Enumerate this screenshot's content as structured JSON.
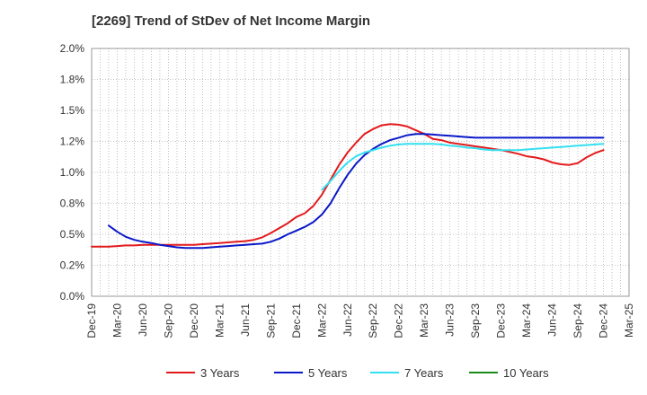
{
  "chart_data": {
    "type": "line",
    "title": "[2269]  Trend of StDev of Net Income Margin",
    "xlabel": "",
    "ylabel": "",
    "ylim": [
      0,
      2.0
    ],
    "y_ticks": [
      "0.0%",
      "0.2%",
      "0.5%",
      "0.8%",
      "1.0%",
      "1.2%",
      "1.5%",
      "1.8%",
      "2.0%"
    ],
    "x_ticks": [
      "Dec-19",
      "Mar-20",
      "Jun-20",
      "Sep-20",
      "Dec-20",
      "Mar-21",
      "Jun-21",
      "Sep-21",
      "Dec-21",
      "Mar-22",
      "Jun-22",
      "Sep-22",
      "Dec-22",
      "Mar-23",
      "Jun-23",
      "Sep-23",
      "Dec-23",
      "Mar-24",
      "Jun-24",
      "Sep-24",
      "Dec-24",
      "Mar-25"
    ],
    "grid": true,
    "legend_position": "bottom",
    "series": [
      {
        "name": "3 Years",
        "color": "#e31a1c",
        "x": [
          "Dec-19",
          "Jan-20",
          "Feb-20",
          "Mar-20",
          "Apr-20",
          "May-20",
          "Jun-20",
          "Jul-20",
          "Aug-20",
          "Sep-20",
          "Oct-20",
          "Nov-20",
          "Dec-20",
          "Jan-21",
          "Feb-21",
          "Mar-21",
          "Apr-21",
          "May-21",
          "Jun-21",
          "Jul-21",
          "Aug-21",
          "Sep-21",
          "Oct-21",
          "Nov-21",
          "Dec-21",
          "Jan-22",
          "Feb-22",
          "Mar-22",
          "Apr-22",
          "May-22",
          "Jun-22",
          "Jul-22",
          "Aug-22",
          "Sep-22",
          "Oct-22",
          "Nov-22",
          "Dec-22",
          "Jan-23",
          "Feb-23",
          "Mar-23",
          "Apr-23",
          "May-23",
          "Jun-23",
          "Jul-23",
          "Aug-23",
          "Sep-23",
          "Oct-23",
          "Nov-23",
          "Dec-23",
          "Jan-24",
          "Feb-24",
          "Mar-24",
          "Apr-24",
          "May-24",
          "Jun-24",
          "Jul-24",
          "Aug-24",
          "Sep-24",
          "Oct-24",
          "Nov-24",
          "Dec-24"
        ],
        "values": [
          0.4,
          0.4,
          0.4,
          0.405,
          0.41,
          0.41,
          0.415,
          0.415,
          0.415,
          0.415,
          0.415,
          0.415,
          0.415,
          0.42,
          0.425,
          0.43,
          0.435,
          0.44,
          0.445,
          0.455,
          0.475,
          0.51,
          0.55,
          0.59,
          0.64,
          0.67,
          0.73,
          0.82,
          0.94,
          1.06,
          1.16,
          1.24,
          1.31,
          1.35,
          1.38,
          1.39,
          1.385,
          1.37,
          1.34,
          1.31,
          1.27,
          1.26,
          1.24,
          1.23,
          1.22,
          1.21,
          1.2,
          1.19,
          1.18,
          1.165,
          1.15,
          1.13,
          1.12,
          1.105,
          1.08,
          1.065,
          1.06,
          1.075,
          1.12,
          1.155,
          1.18
        ]
      },
      {
        "name": "5 Years",
        "color": "#0a18c8",
        "x": [
          "Feb-20",
          "Mar-20",
          "Apr-20",
          "May-20",
          "Jun-20",
          "Jul-20",
          "Aug-20",
          "Sep-20",
          "Oct-20",
          "Nov-20",
          "Dec-20",
          "Jan-21",
          "Feb-21",
          "Mar-21",
          "Apr-21",
          "May-21",
          "Jun-21",
          "Jul-21",
          "Aug-21",
          "Sep-21",
          "Oct-21",
          "Nov-21",
          "Dec-21",
          "Jan-22",
          "Feb-22",
          "Mar-22",
          "Apr-22",
          "May-22",
          "Jun-22",
          "Jul-22",
          "Aug-22",
          "Sep-22",
          "Oct-22",
          "Nov-22",
          "Dec-22",
          "Jan-23",
          "Feb-23",
          "Mar-23",
          "Apr-23",
          "May-23",
          "Jun-23",
          "Jul-23",
          "Aug-23",
          "Sep-23",
          "Oct-23",
          "Nov-23",
          "Dec-23",
          "Jan-24",
          "Feb-24",
          "Mar-24",
          "Apr-24",
          "May-24",
          "Jun-24",
          "Jul-24",
          "Aug-24",
          "Sep-24",
          "Oct-24",
          "Nov-24",
          "Dec-24"
        ],
        "values": [
          0.57,
          0.52,
          0.48,
          0.455,
          0.44,
          0.43,
          0.415,
          0.405,
          0.395,
          0.39,
          0.39,
          0.39,
          0.395,
          0.4,
          0.405,
          0.41,
          0.415,
          0.42,
          0.425,
          0.44,
          0.465,
          0.5,
          0.53,
          0.56,
          0.6,
          0.66,
          0.75,
          0.87,
          0.98,
          1.07,
          1.14,
          1.19,
          1.23,
          1.26,
          1.28,
          1.3,
          1.31,
          1.31,
          1.305,
          1.3,
          1.295,
          1.29,
          1.285,
          1.28,
          1.28,
          1.28,
          1.28,
          1.28,
          1.28,
          1.28,
          1.28,
          1.28,
          1.28,
          1.28,
          1.28,
          1.28,
          1.28,
          1.28,
          1.28
        ]
      },
      {
        "name": "7 Years",
        "color": "#33e0f0",
        "x": [
          "Mar-22",
          "Apr-22",
          "May-22",
          "Jun-22",
          "Jul-22",
          "Aug-22",
          "Sep-22",
          "Oct-22",
          "Nov-22",
          "Dec-22",
          "Jan-23",
          "Feb-23",
          "Mar-23",
          "Apr-23",
          "May-23",
          "Jun-23",
          "Jul-23",
          "Aug-23",
          "Sep-23",
          "Oct-23",
          "Nov-23",
          "Dec-23",
          "Jan-24",
          "Feb-24",
          "Mar-24",
          "Apr-24",
          "May-24",
          "Jun-24",
          "Jul-24",
          "Aug-24",
          "Sep-24",
          "Oct-24",
          "Nov-24",
          "Dec-24"
        ],
        "values": [
          0.86,
          0.93,
          1.01,
          1.08,
          1.13,
          1.16,
          1.18,
          1.2,
          1.215,
          1.225,
          1.23,
          1.23,
          1.23,
          1.23,
          1.225,
          1.215,
          1.21,
          1.2,
          1.195,
          1.185,
          1.18,
          1.18,
          1.18,
          1.18,
          1.185,
          1.19,
          1.195,
          1.2,
          1.205,
          1.21,
          1.215,
          1.22,
          1.225,
          1.23
        ]
      },
      {
        "name": "10 Years",
        "color": "#1a8a1a",
        "x": [],
        "values": []
      }
    ]
  }
}
